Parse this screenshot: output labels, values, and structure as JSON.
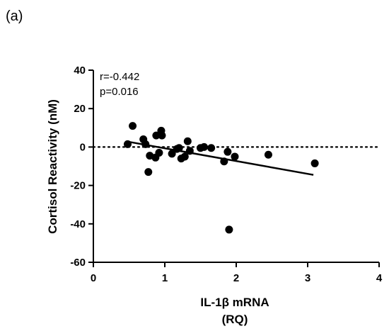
{
  "panel_label": "(a)",
  "chart_data": {
    "type": "scatter",
    "title": "",
    "xlabel_line1": "IL-1β mRNA",
    "xlabel_line2": "(RQ)",
    "ylabel": "Cortisol Reactivity (nM)",
    "xlim": [
      0,
      4
    ],
    "ylim": [
      -60,
      40
    ],
    "x_ticks": [
      0,
      1,
      2,
      3,
      4
    ],
    "y_ticks": [
      -60,
      -40,
      -20,
      0,
      20,
      40
    ],
    "reference_line": {
      "y": 0,
      "style": "dotted"
    },
    "annotations": [
      "r=-0.442",
      "p=0.016"
    ],
    "points": [
      {
        "x": 0.48,
        "y": 1.5
      },
      {
        "x": 0.55,
        "y": 11
      },
      {
        "x": 0.7,
        "y": 4
      },
      {
        "x": 0.73,
        "y": 1.5
      },
      {
        "x": 0.77,
        "y": -13
      },
      {
        "x": 0.79,
        "y": -4.5
      },
      {
        "x": 0.87,
        "y": -5.5
      },
      {
        "x": 0.88,
        "y": 6
      },
      {
        "x": 0.92,
        "y": -3
      },
      {
        "x": 0.95,
        "y": 8.5
      },
      {
        "x": 0.96,
        "y": 6
      },
      {
        "x": 1.1,
        "y": -3.5
      },
      {
        "x": 1.17,
        "y": -1
      },
      {
        "x": 1.2,
        "y": -0.5
      },
      {
        "x": 1.23,
        "y": -6
      },
      {
        "x": 1.28,
        "y": -5
      },
      {
        "x": 1.32,
        "y": 3
      },
      {
        "x": 1.35,
        "y": -2
      },
      {
        "x": 1.5,
        "y": -0.5
      },
      {
        "x": 1.55,
        "y": 0
      },
      {
        "x": 1.65,
        "y": -0.5
      },
      {
        "x": 1.83,
        "y": -7.5
      },
      {
        "x": 1.88,
        "y": -2.5
      },
      {
        "x": 1.9,
        "y": -43
      },
      {
        "x": 1.98,
        "y": -5
      },
      {
        "x": 2.45,
        "y": -4
      },
      {
        "x": 3.1,
        "y": -8.5
      }
    ],
    "regression_line": {
      "x": [
        0.48,
        3.08
      ],
      "y": [
        2.8,
        -14.5
      ]
    }
  }
}
